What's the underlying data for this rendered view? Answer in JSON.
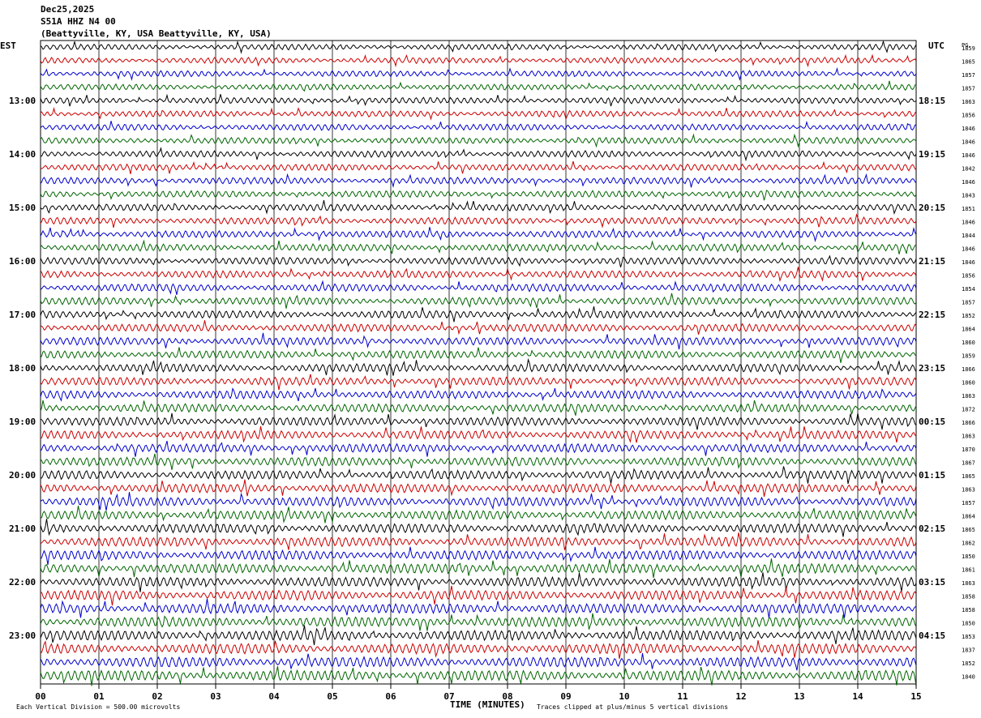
{
  "header": {
    "date": "Dec25,2025",
    "station": "S51A HHZ N4 00",
    "location": "(Beattyville, KY, USA Beattyville, KY, USA)"
  },
  "left_tz": "EST",
  "right_tz": "UTC",
  "right_col_header": "PG",
  "footer": {
    "scale_note": "Each Vertical Division =  500.00 microvolts",
    "x_axis_label": "TIME (MINUTES)",
    "clip_note": "Traces clipped at plus/minus 5 vertical divisions"
  },
  "colors": {
    "trace_cycle": [
      "#000000",
      "#cc0000",
      "#0000cc",
      "#006600"
    ],
    "grid": "#000000"
  },
  "chart_data": {
    "type": "line",
    "title": "S51A HHZ N4 00",
    "xlabel": "TIME (MINUTES)",
    "xlim": [
      0,
      15
    ],
    "x_ticks": [
      "00",
      "01",
      "02",
      "03",
      "04",
      "05",
      "06",
      "07",
      "08",
      "09",
      "10",
      "11",
      "12",
      "13",
      "14",
      "15"
    ],
    "traces_per_hour": 4,
    "trace_count": 48,
    "est_hour_labels": [
      {
        "row": 4,
        "label": "13:00"
      },
      {
        "row": 8,
        "label": "14:00"
      },
      {
        "row": 12,
        "label": "15:00"
      },
      {
        "row": 16,
        "label": "16:00"
      },
      {
        "row": 20,
        "label": "17:00"
      },
      {
        "row": 24,
        "label": "18:00"
      },
      {
        "row": 28,
        "label": "19:00"
      },
      {
        "row": 32,
        "label": "20:00"
      },
      {
        "row": 36,
        "label": "21:00"
      },
      {
        "row": 40,
        "label": "22:00"
      },
      {
        "row": 44,
        "label": "23:00"
      }
    ],
    "utc_hour_labels": [
      {
        "row": 4,
        "label": "18:15"
      },
      {
        "row": 8,
        "label": "19:15"
      },
      {
        "row": 12,
        "label": "20:15"
      },
      {
        "row": 16,
        "label": "21:15"
      },
      {
        "row": 20,
        "label": "22:15"
      },
      {
        "row": 24,
        "label": "23:15"
      },
      {
        "row": 28,
        "label": "00:15"
      },
      {
        "row": 32,
        "label": "01:15"
      },
      {
        "row": 36,
        "label": "02:15"
      },
      {
        "row": 40,
        "label": "03:15"
      },
      {
        "row": 44,
        "label": "04:15"
      }
    ],
    "pg_values": [
      "1859",
      "1865",
      "1857",
      "1857",
      "1863",
      "1856",
      "1846",
      "1846",
      "1846",
      "1842",
      "1846",
      "1843",
      "1851",
      "1846",
      "1844",
      "1846",
      "1846",
      "1856",
      "1854",
      "1857",
      "1852",
      "1864",
      "1860",
      "1859",
      "1866",
      "1860",
      "1863",
      "1872",
      "1866",
      "1863",
      "1870",
      "1867",
      "1865",
      "1863",
      "1857",
      "1864",
      "1865",
      "1862",
      "1850",
      "1861",
      "1863",
      "1858",
      "1858",
      "1850",
      "1853",
      "1837",
      "1852",
      "1840"
    ]
  }
}
